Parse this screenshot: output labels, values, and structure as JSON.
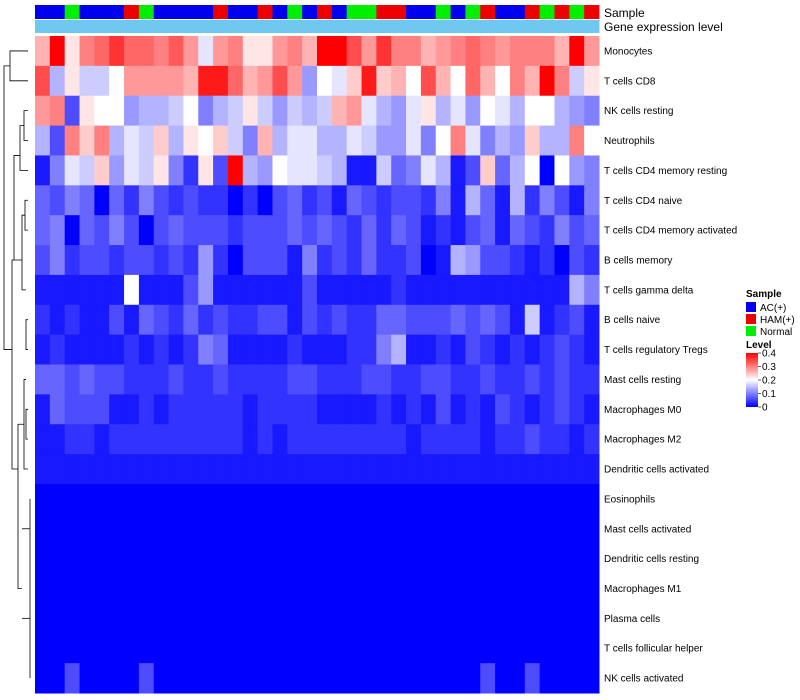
{
  "chart_data": {
    "type": "heatmap",
    "title": "",
    "annotation_labels": [
      "Sample",
      "Gene expression level"
    ],
    "legend_sample_title": "Sample",
    "legend_level_title": "Level",
    "sample_groups": [
      {
        "name": "AC(+)",
        "color": "#0000EE"
      },
      {
        "name": "HAM(+)",
        "color": "#EE0000"
      },
      {
        "name": "Normal",
        "color": "#00EE00"
      }
    ],
    "gene_expression_color": "#6EC8F0",
    "color_scale": {
      "min": 0,
      "max": 0.4,
      "low": "#0000FF",
      "mid": "#FFFFFF",
      "high": "#FF0000",
      "ticks": [
        "0.4",
        "0.3",
        "0.2",
        "0.1",
        "0"
      ]
    },
    "column_sample_groups": [
      "AC(+)",
      "AC(+)",
      "Normal",
      "AC(+)",
      "AC(+)",
      "AC(+)",
      "HAM(+)",
      "Normal",
      "AC(+)",
      "AC(+)",
      "AC(+)",
      "AC(+)",
      "HAM(+)",
      "AC(+)",
      "AC(+)",
      "HAM(+)",
      "AC(+)",
      "Normal",
      "AC(+)",
      "HAM(+)",
      "AC(+)",
      "Normal",
      "Normal",
      "HAM(+)",
      "HAM(+)",
      "AC(+)",
      "AC(+)",
      "Normal",
      "AC(+)",
      "Normal",
      "HAM(+)",
      "AC(+)",
      "AC(+)",
      "HAM(+)",
      "Normal",
      "HAM(+)",
      "Normal",
      "HAM(+)"
    ],
    "rows": [
      "Monocytes",
      "T cells CD8",
      "NK cells resting",
      "Neutrophils",
      "T cells CD4 memory resting",
      "T cells CD4 naive",
      "T cells CD4 memory activated",
      "B cells memory",
      "T cells gamma delta",
      "B cells naive",
      "T cells regulatory  Tregs",
      "Mast cells resting",
      "Macrophages M0",
      "Macrophages M2",
      "Dendritic cells activated",
      "Eosinophils",
      "Mast cells activated",
      "Dendritic cells resting",
      "Macrophages M1",
      "Plasma cells",
      "T cells follicular helper",
      "NK cells activated"
    ],
    "values": [
      [
        0.26,
        0.4,
        0.22,
        0.3,
        0.32,
        0.36,
        0.32,
        0.32,
        0.3,
        0.33,
        0.28,
        0.18,
        0.28,
        0.3,
        0.22,
        0.22,
        0.28,
        0.3,
        0.26,
        0.4,
        0.4,
        0.34,
        0.28,
        0.36,
        0.3,
        0.3,
        0.26,
        0.28,
        0.3,
        0.32,
        0.3,
        0.28,
        0.3,
        0.3,
        0.3,
        0.26,
        0.4,
        0.28
      ],
      [
        0.34,
        0.14,
        0.22,
        0.16,
        0.16,
        0.2,
        0.28,
        0.28,
        0.28,
        0.28,
        0.26,
        0.38,
        0.38,
        0.32,
        0.26,
        0.28,
        0.34,
        0.28,
        0.12,
        0.2,
        0.18,
        0.24,
        0.38,
        0.24,
        0.26,
        0.2,
        0.34,
        0.26,
        0.2,
        0.32,
        0.26,
        0.2,
        0.3,
        0.26,
        0.4,
        0.3,
        0.16,
        0.22
      ],
      [
        0.28,
        0.3,
        0.06,
        0.22,
        0.2,
        0.2,
        0.12,
        0.14,
        0.14,
        0.16,
        0.2,
        0.1,
        0.14,
        0.16,
        0.22,
        0.16,
        0.12,
        0.16,
        0.14,
        0.16,
        0.26,
        0.28,
        0.18,
        0.14,
        0.12,
        0.18,
        0.22,
        0.14,
        0.18,
        0.12,
        0.2,
        0.18,
        0.14,
        0.2,
        0.2,
        0.14,
        0.12,
        0.1
      ],
      [
        0.14,
        0.06,
        0.3,
        0.24,
        0.3,
        0.14,
        0.18,
        0.16,
        0.24,
        0.14,
        0.22,
        0.2,
        0.24,
        0.16,
        0.1,
        0.26,
        0.14,
        0.18,
        0.18,
        0.14,
        0.14,
        0.18,
        0.16,
        0.12,
        0.12,
        0.18,
        0.1,
        0.2,
        0.3,
        0.18,
        0.1,
        0.14,
        0.12,
        0.24,
        0.14,
        0.14,
        0.3,
        0.2
      ],
      [
        0.02,
        0.1,
        0.18,
        0.16,
        0.24,
        0.12,
        0.18,
        0.16,
        0.22,
        0.1,
        0.04,
        0.22,
        0.06,
        0.4,
        0.14,
        0.12,
        0.2,
        0.18,
        0.18,
        0.16,
        0.14,
        0.02,
        0.02,
        0.16,
        0.08,
        0.1,
        0.18,
        0.14,
        0.02,
        0.06,
        0.24,
        0.08,
        0.14,
        0.2,
        0.0,
        0.2,
        0.12,
        0.1
      ],
      [
        0.08,
        0.06,
        0.1,
        0.08,
        0.0,
        0.08,
        0.04,
        0.1,
        0.06,
        0.04,
        0.06,
        0.04,
        0.04,
        0.0,
        0.04,
        0.0,
        0.06,
        0.08,
        0.04,
        0.06,
        0.02,
        0.08,
        0.06,
        0.04,
        0.06,
        0.06,
        0.04,
        0.1,
        0.02,
        0.14,
        0.08,
        0.02,
        0.14,
        0.04,
        0.1,
        0.06,
        0.02,
        0.1
      ],
      [
        0.08,
        0.1,
        0.0,
        0.08,
        0.06,
        0.1,
        0.06,
        0.0,
        0.06,
        0.08,
        0.06,
        0.06,
        0.06,
        0.04,
        0.06,
        0.06,
        0.06,
        0.08,
        0.06,
        0.08,
        0.06,
        0.04,
        0.08,
        0.04,
        0.08,
        0.06,
        0.02,
        0.04,
        0.02,
        0.06,
        0.08,
        0.02,
        0.08,
        0.06,
        0.04,
        0.1,
        0.06,
        0.08
      ],
      [
        0.06,
        0.1,
        0.04,
        0.06,
        0.06,
        0.04,
        0.06,
        0.06,
        0.04,
        0.06,
        0.04,
        0.12,
        0.04,
        0.0,
        0.06,
        0.06,
        0.06,
        0.02,
        0.1,
        0.04,
        0.06,
        0.04,
        0.08,
        0.04,
        0.04,
        0.06,
        0.0,
        0.02,
        0.14,
        0.12,
        0.06,
        0.06,
        0.04,
        0.02,
        0.04,
        0.0,
        0.06,
        0.04
      ],
      [
        0.02,
        0.02,
        0.02,
        0.02,
        0.02,
        0.02,
        0.2,
        0.02,
        0.02,
        0.02,
        0.06,
        0.12,
        0.02,
        0.02,
        0.02,
        0.02,
        0.02,
        0.02,
        0.06,
        0.02,
        0.02,
        0.02,
        0.02,
        0.02,
        0.04,
        0.02,
        0.02,
        0.02,
        0.02,
        0.02,
        0.02,
        0.02,
        0.02,
        0.02,
        0.02,
        0.02,
        0.14,
        0.1
      ],
      [
        0.04,
        0.02,
        0.04,
        0.02,
        0.02,
        0.06,
        0.02,
        0.08,
        0.06,
        0.04,
        0.08,
        0.04,
        0.06,
        0.04,
        0.04,
        0.06,
        0.06,
        0.02,
        0.06,
        0.04,
        0.06,
        0.04,
        0.04,
        0.08,
        0.08,
        0.06,
        0.06,
        0.06,
        0.08,
        0.06,
        0.08,
        0.06,
        0.02,
        0.16,
        0.02,
        0.04,
        0.06,
        0.02
      ],
      [
        0.02,
        0.04,
        0.02,
        0.02,
        0.02,
        0.02,
        0.04,
        0.02,
        0.04,
        0.02,
        0.04,
        0.1,
        0.08,
        0.02,
        0.02,
        0.02,
        0.02,
        0.04,
        0.02,
        0.02,
        0.02,
        0.04,
        0.04,
        0.1,
        0.14,
        0.02,
        0.02,
        0.04,
        0.02,
        0.06,
        0.04,
        0.02,
        0.04,
        0.02,
        0.04,
        0.06,
        0.04,
        0.02
      ],
      [
        0.08,
        0.08,
        0.06,
        0.08,
        0.06,
        0.06,
        0.04,
        0.04,
        0.04,
        0.06,
        0.04,
        0.04,
        0.06,
        0.04,
        0.04,
        0.04,
        0.04,
        0.06,
        0.06,
        0.04,
        0.04,
        0.04,
        0.06,
        0.06,
        0.04,
        0.04,
        0.06,
        0.06,
        0.04,
        0.04,
        0.06,
        0.04,
        0.04,
        0.06,
        0.04,
        0.06,
        0.04,
        0.04
      ],
      [
        0.02,
        0.08,
        0.06,
        0.06,
        0.06,
        0.02,
        0.02,
        0.04,
        0.02,
        0.04,
        0.04,
        0.04,
        0.04,
        0.04,
        0.02,
        0.04,
        0.04,
        0.04,
        0.04,
        0.02,
        0.02,
        0.02,
        0.02,
        0.04,
        0.02,
        0.04,
        0.02,
        0.06,
        0.02,
        0.04,
        0.02,
        0.06,
        0.04,
        0.02,
        0.04,
        0.06,
        0.04,
        0.02
      ],
      [
        0.02,
        0.02,
        0.04,
        0.04,
        0.02,
        0.04,
        0.04,
        0.04,
        0.04,
        0.04,
        0.04,
        0.04,
        0.04,
        0.04,
        0.02,
        0.04,
        0.02,
        0.04,
        0.04,
        0.04,
        0.04,
        0.04,
        0.04,
        0.04,
        0.04,
        0.02,
        0.04,
        0.04,
        0.04,
        0.04,
        0.02,
        0.04,
        0.04,
        0.06,
        0.04,
        0.04,
        0.02,
        0.04
      ],
      [
        0.02,
        0.02,
        0.02,
        0.02,
        0.02,
        0.02,
        0.02,
        0.02,
        0.02,
        0.02,
        0.02,
        0.02,
        0.02,
        0.02,
        0.02,
        0.02,
        0.02,
        0.02,
        0.02,
        0.02,
        0.02,
        0.02,
        0.02,
        0.02,
        0.02,
        0.02,
        0.02,
        0.02,
        0.02,
        0.02,
        0.02,
        0.02,
        0.02,
        0.02,
        0.02,
        0.02,
        0.02,
        0.02
      ],
      [
        0,
        0,
        0,
        0,
        0,
        0,
        0,
        0,
        0,
        0,
        0,
        0,
        0,
        0,
        0,
        0,
        0,
        0,
        0,
        0,
        0,
        0,
        0,
        0,
        0,
        0,
        0,
        0,
        0,
        0,
        0,
        0,
        0,
        0,
        0,
        0,
        0,
        0
      ],
      [
        0,
        0,
        0,
        0,
        0,
        0,
        0,
        0,
        0,
        0,
        0,
        0,
        0,
        0,
        0,
        0,
        0,
        0,
        0,
        0,
        0,
        0,
        0,
        0,
        0,
        0,
        0,
        0,
        0,
        0,
        0,
        0,
        0,
        0,
        0,
        0,
        0,
        0
      ],
      [
        0,
        0,
        0,
        0,
        0,
        0,
        0,
        0,
        0,
        0,
        0,
        0,
        0,
        0,
        0,
        0,
        0,
        0,
        0,
        0,
        0,
        0,
        0,
        0,
        0,
        0,
        0,
        0,
        0,
        0,
        0,
        0,
        0,
        0,
        0,
        0,
        0,
        0
      ],
      [
        0,
        0,
        0,
        0,
        0,
        0,
        0,
        0,
        0,
        0,
        0,
        0,
        0,
        0,
        0,
        0,
        0,
        0,
        0,
        0,
        0,
        0,
        0,
        0,
        0,
        0,
        0,
        0,
        0,
        0,
        0,
        0,
        0,
        0,
        0,
        0,
        0,
        0
      ],
      [
        0,
        0,
        0,
        0,
        0,
        0,
        0,
        0,
        0,
        0,
        0,
        0,
        0,
        0,
        0,
        0,
        0,
        0,
        0,
        0,
        0,
        0,
        0,
        0,
        0,
        0,
        0,
        0,
        0,
        0,
        0,
        0,
        0,
        0,
        0,
        0,
        0,
        0
      ],
      [
        0,
        0,
        0,
        0,
        0,
        0,
        0,
        0,
        0,
        0,
        0,
        0,
        0,
        0,
        0,
        0,
        0,
        0,
        0,
        0,
        0,
        0,
        0,
        0,
        0,
        0,
        0,
        0,
        0,
        0,
        0,
        0,
        0,
        0,
        0,
        0,
        0,
        0
      ],
      [
        0,
        0,
        0.06,
        0,
        0,
        0,
        0,
        0.06,
        0,
        0,
        0,
        0,
        0,
        0,
        0,
        0,
        0,
        0,
        0,
        0,
        0,
        0,
        0,
        0,
        0,
        0,
        0,
        0,
        0,
        0,
        0.06,
        0,
        0,
        0.06,
        0,
        0,
        0,
        0
      ]
    ]
  }
}
